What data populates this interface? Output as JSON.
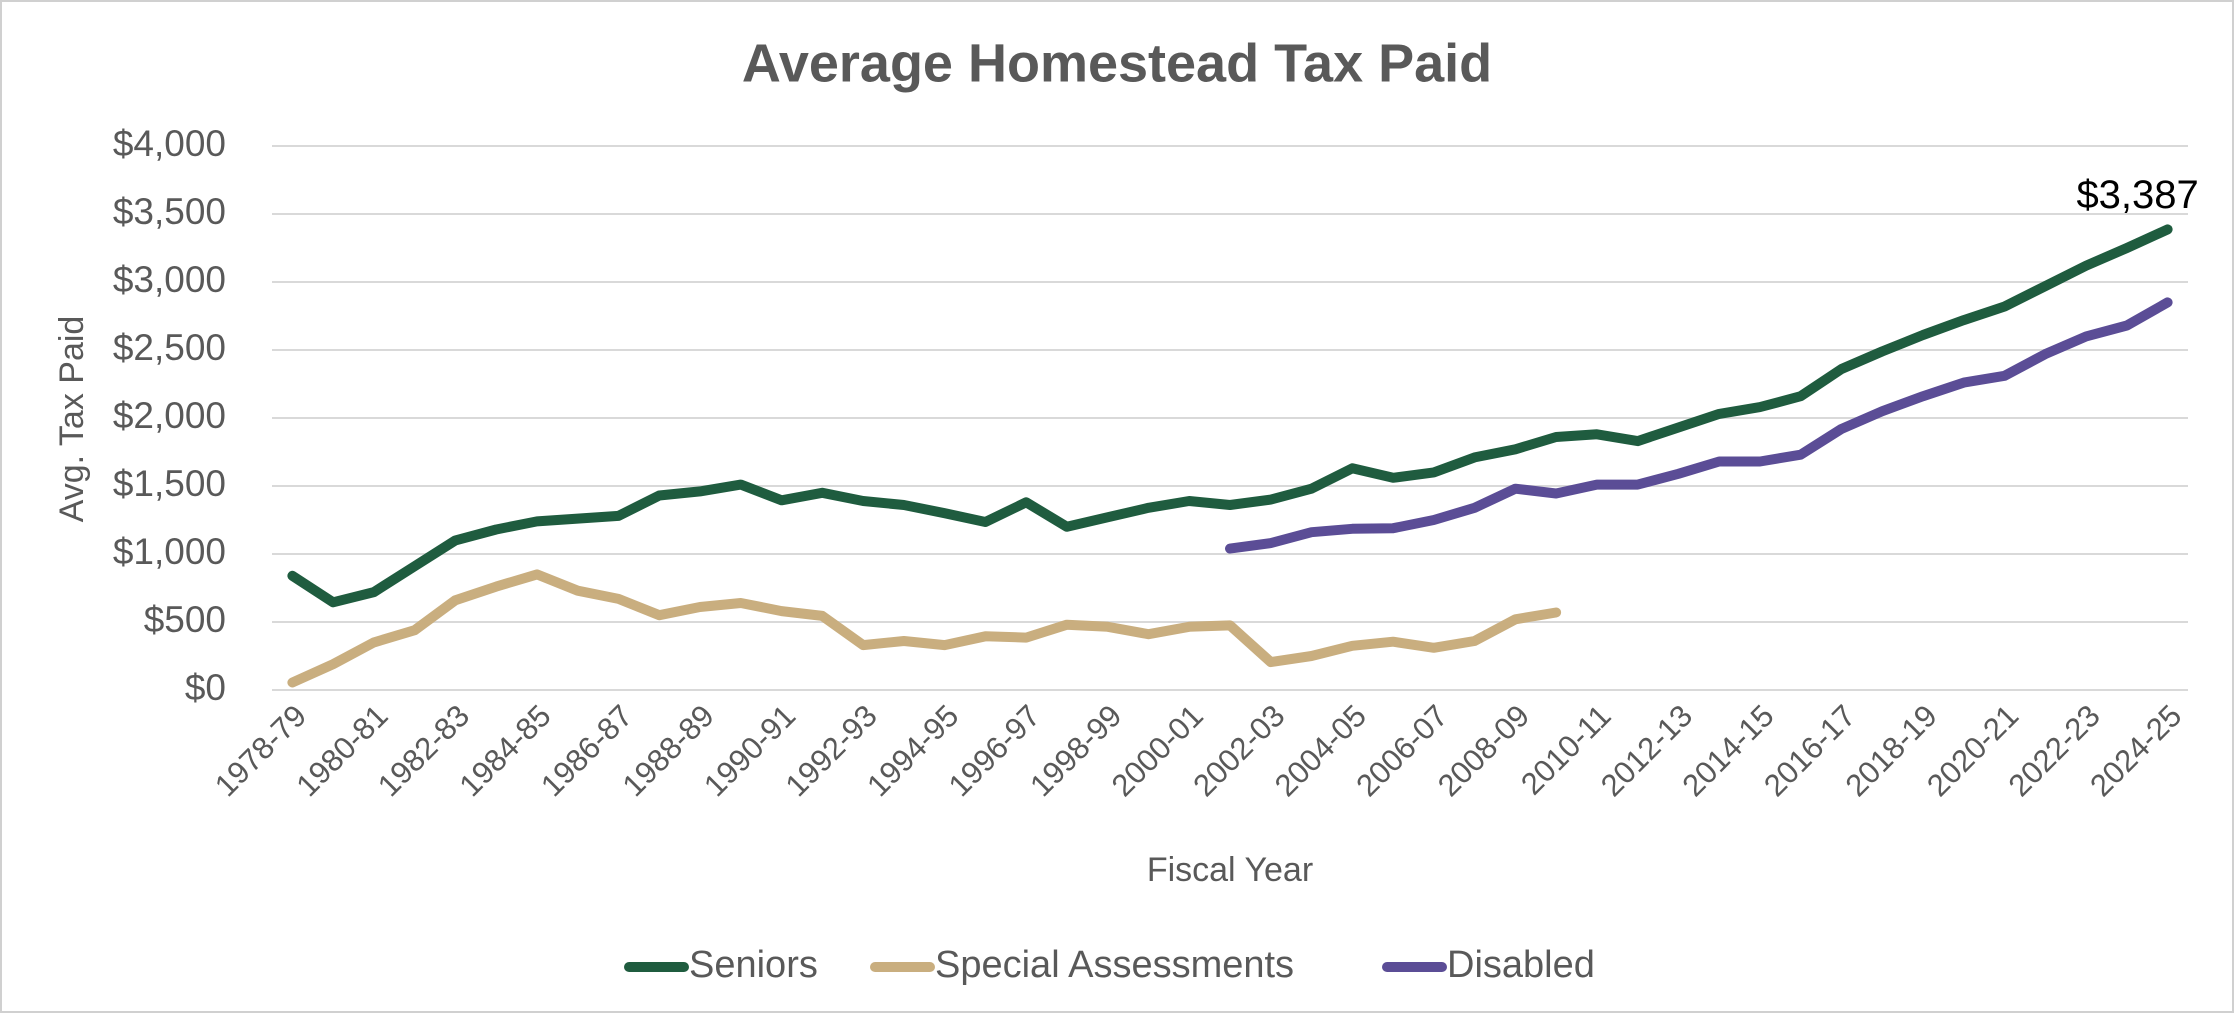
{
  "chart_data": {
    "type": "line",
    "title": "Average Homestead Tax Paid",
    "x_label": "Fiscal Year",
    "y_label": "Avg. Tax Paid",
    "categories": [
      "1978-79",
      null,
      "1980-81",
      null,
      "1982-83",
      null,
      "1984-85",
      null,
      "1986-87",
      null,
      "1988-89",
      null,
      "1990-91",
      null,
      "1992-93",
      null,
      "1994-95",
      null,
      "1996-97",
      null,
      "1998-99",
      null,
      "2000-01",
      null,
      "2002-03",
      null,
      "2004-05",
      null,
      "2006-07",
      null,
      "2008-09",
      null,
      "2010-11",
      null,
      "2012-13",
      null,
      "2014-15",
      null,
      "2016-17",
      null,
      "2018-19",
      null,
      "2020-21",
      null,
      "2022-23",
      null,
      "2024-25"
    ],
    "series": [
      {
        "name": "Seniors",
        "color": "#1f5c3f",
        "values": [
          840,
          645,
          720,
          910,
          1100,
          1180,
          1240,
          1260,
          1280,
          1430,
          1460,
          1510,
          1395,
          1450,
          1390,
          1360,
          1300,
          1235,
          1380,
          1200,
          1270,
          1340,
          1390,
          1360,
          1400,
          1480,
          1630,
          1560,
          1600,
          1710,
          1770,
          1860,
          1880,
          1830,
          1930,
          2030,
          2080,
          2160,
          2360,
          2490,
          2610,
          2720,
          2820,
          2970,
          3120,
          3250,
          3387
        ],
        "value_labels": [
          null,
          null,
          null,
          null,
          null,
          null,
          null,
          null,
          null,
          null,
          null,
          null,
          null,
          null,
          null,
          null,
          null,
          null,
          null,
          null,
          null,
          null,
          null,
          null,
          null,
          null,
          null,
          null,
          null,
          null,
          null,
          null,
          null,
          null,
          null,
          null,
          null,
          null,
          null,
          null,
          null,
          null,
          null,
          null,
          null,
          null,
          "$3,387"
        ]
      },
      {
        "name": "Special Assessments",
        "color": "#c9ae7f",
        "values": [
          55,
          190,
          350,
          440,
          660,
          760,
          850,
          730,
          670,
          550,
          610,
          640,
          580,
          545,
          330,
          360,
          330,
          395,
          385,
          480,
          465,
          410,
          465,
          475,
          205,
          250,
          325,
          355,
          310,
          360,
          520,
          570,
          null,
          null,
          null,
          null,
          null,
          null,
          null,
          null,
          null,
          null,
          null,
          null,
          null,
          null,
          null
        ]
      },
      {
        "name": "Disabled",
        "color": "#5b4d96",
        "values": [
          null,
          null,
          null,
          null,
          null,
          null,
          null,
          null,
          null,
          null,
          null,
          null,
          null,
          null,
          null,
          null,
          null,
          null,
          null,
          null,
          null,
          null,
          null,
          1040,
          1080,
          1160,
          1185,
          1190,
          1250,
          1340,
          1480,
          1445,
          1510,
          1510,
          1590,
          1680,
          1680,
          1730,
          1920,
          2050,
          2160,
          2260,
          2310,
          2470,
          2600,
          2680,
          2850
        ]
      }
    ],
    "ylim": [
      0,
      4000
    ],
    "yticks": [
      {
        "value": 0,
        "label": "$0"
      },
      {
        "value": 500,
        "label": "$500"
      },
      {
        "value": 1000,
        "label": "$1,000"
      },
      {
        "value": 1500,
        "label": "$1,500"
      },
      {
        "value": 2000,
        "label": "$2,000"
      },
      {
        "value": 2500,
        "label": "$2,500"
      },
      {
        "value": 3000,
        "label": "$3,000"
      },
      {
        "value": 3500,
        "label": "$3,500"
      },
      {
        "value": 4000,
        "label": "$4,000"
      }
    ],
    "grid": true,
    "legend": "bottom"
  }
}
